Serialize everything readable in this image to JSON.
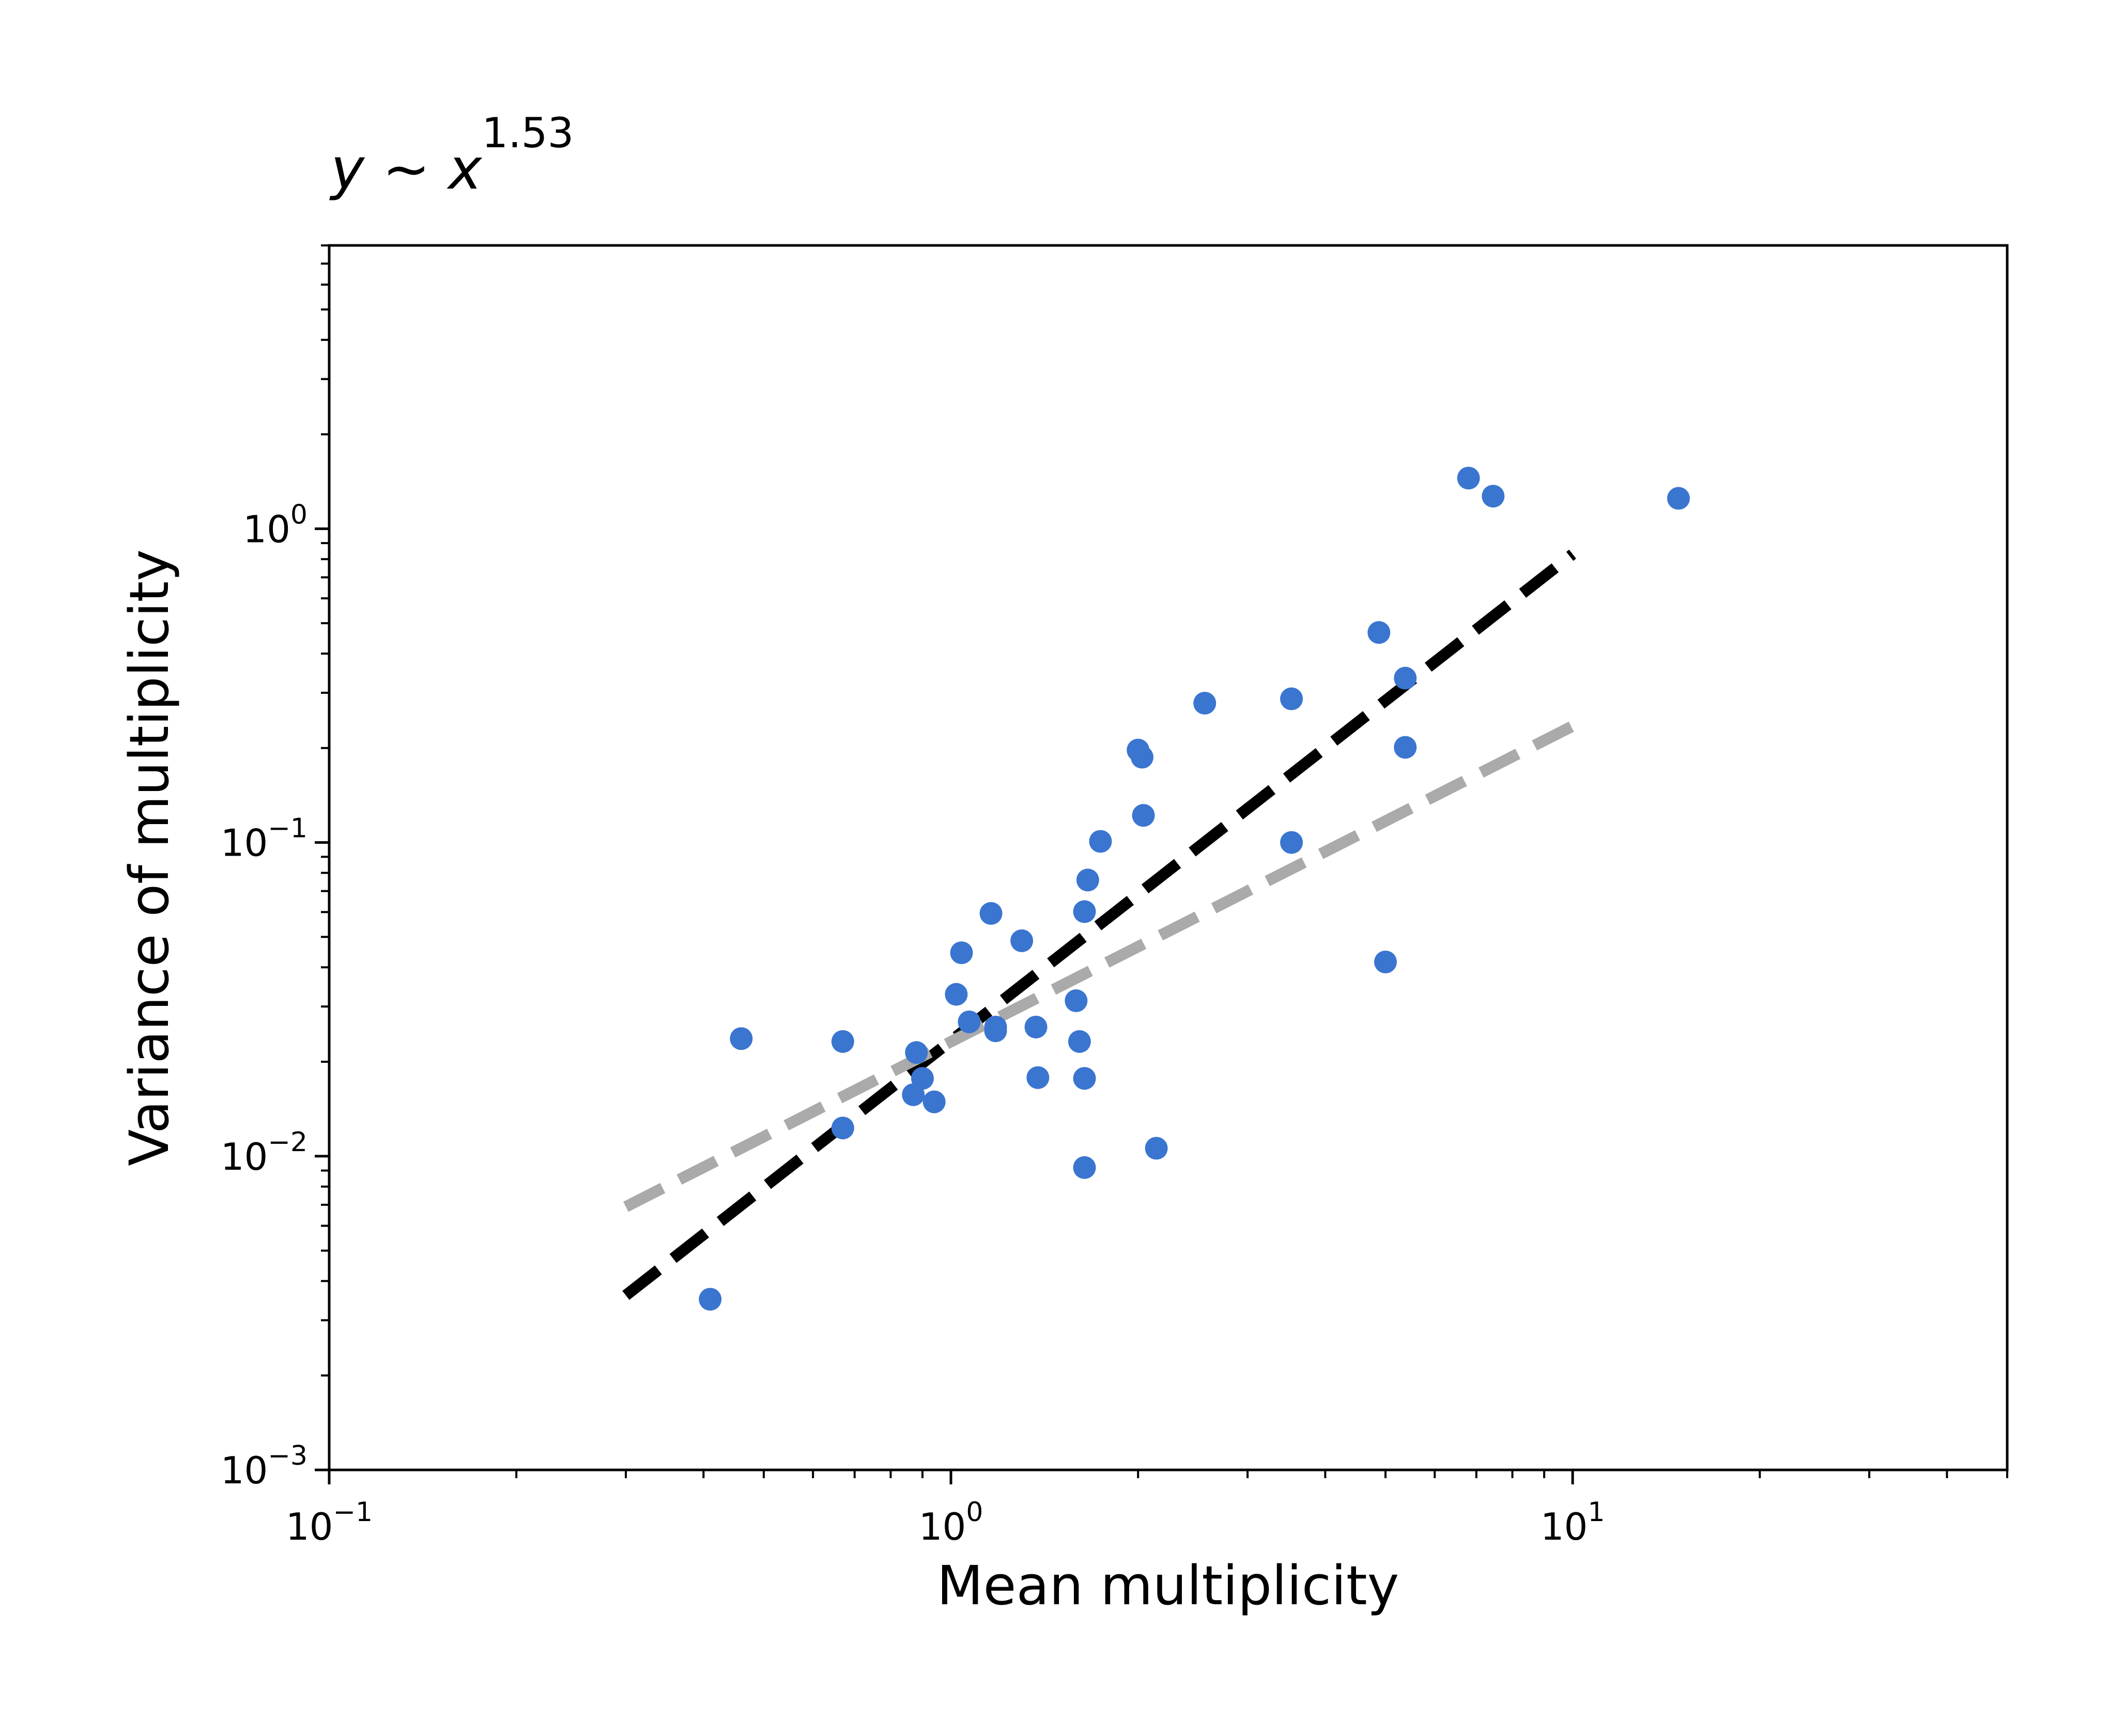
{
  "chart_data": {
    "type": "scatter",
    "title": "y ~ x",
    "title_exponent": "1.53",
    "xlabel": "Mean multiplicity",
    "ylabel": "Variance of multiplicity",
    "xscale": "log",
    "yscale": "log",
    "xlim": [
      0.1,
      50
    ],
    "ylim": [
      0.001,
      8
    ],
    "x_ticks": [
      {
        "base": "10",
        "exp": "−1",
        "value": 0.1
      },
      {
        "base": "10",
        "exp": "0",
        "value": 1
      },
      {
        "base": "10",
        "exp": "1",
        "value": 10
      }
    ],
    "y_ticks": [
      {
        "base": "10",
        "exp": "−3",
        "value": 0.001
      },
      {
        "base": "10",
        "exp": "−2",
        "value": 0.01
      },
      {
        "base": "10",
        "exp": "−1",
        "value": 0.1
      },
      {
        "base": "10",
        "exp": "0",
        "value": 1
      }
    ],
    "grid": false,
    "legend": "none",
    "points": {
      "color": "#3a75d0",
      "data": [
        [
          0.41,
          0.0035
        ],
        [
          0.46,
          0.0237
        ],
        [
          0.67,
          0.0232
        ],
        [
          0.67,
          0.0123
        ],
        [
          0.87,
          0.0157
        ],
        [
          0.88,
          0.0214
        ],
        [
          0.9,
          0.0177
        ],
        [
          0.94,
          0.0149
        ],
        [
          1.02,
          0.0328
        ],
        [
          1.04,
          0.0445
        ],
        [
          1.07,
          0.0268
        ],
        [
          1.16,
          0.0594
        ],
        [
          1.18,
          0.0258
        ],
        [
          1.18,
          0.0251
        ],
        [
          1.3,
          0.0486
        ],
        [
          1.37,
          0.0258
        ],
        [
          1.38,
          0.0178
        ],
        [
          1.59,
          0.0313
        ],
        [
          1.61,
          0.0232
        ],
        [
          1.64,
          0.0092
        ],
        [
          1.64,
          0.0177
        ],
        [
          1.64,
          0.0602
        ],
        [
          1.66,
          0.0759
        ],
        [
          1.74,
          0.1008
        ],
        [
          2.0,
          0.197
        ],
        [
          2.03,
          0.187
        ],
        [
          2.04,
          0.122
        ],
        [
          2.14,
          0.0106
        ],
        [
          2.56,
          0.278
        ],
        [
          3.53,
          0.287
        ],
        [
          3.53,
          0.1
        ],
        [
          4.88,
          0.467
        ],
        [
          5.0,
          0.0416
        ],
        [
          5.38,
          0.334
        ],
        [
          5.38,
          0.201
        ],
        [
          6.8,
          1.45
        ],
        [
          7.45,
          1.27
        ],
        [
          14.8,
          1.25
        ]
      ]
    },
    "lines": [
      {
        "style": "dashed",
        "color": "#000000",
        "x": [
          0.3,
          10
        ],
        "y": [
          0.0036,
          0.83
        ]
      },
      {
        "style": "dashed",
        "color": "#aaaaaa",
        "x": [
          0.3,
          10
        ],
        "y": [
          0.0069,
          0.235
        ]
      }
    ]
  }
}
